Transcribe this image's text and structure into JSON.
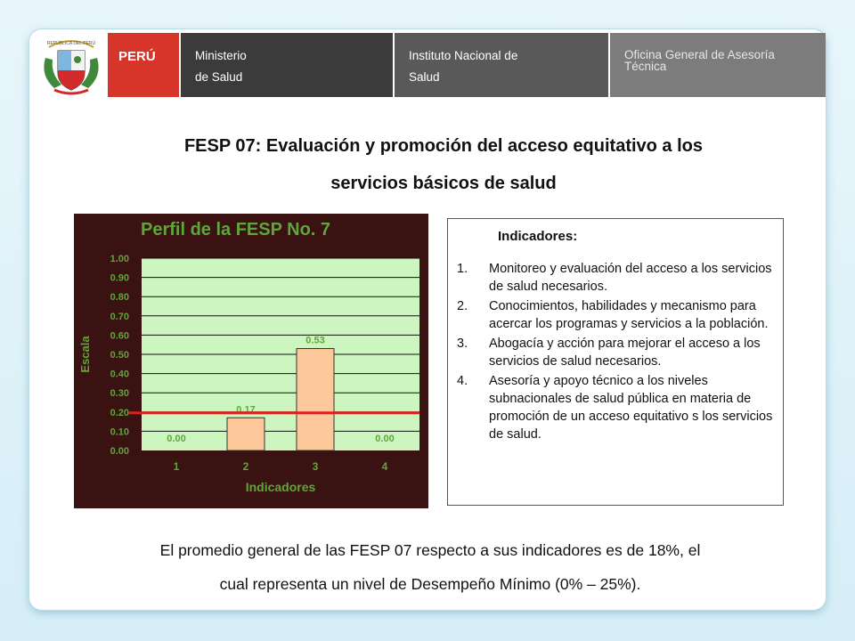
{
  "header": {
    "country": "PERÚ",
    "ministry_line1": "Ministerio",
    "ministry_line2": "de Salud",
    "institute_line1": "Instituto Nacional de",
    "institute_line2": "Salud",
    "office_line1": "Oficina General de Asesoría",
    "office_line2": "Técnica",
    "crest_text": "REPÚBLICA DEL PERÚ"
  },
  "title_line1": "FESP 07: Evaluación y promoción del acceso equitativo a los",
  "title_line2": "servicios básicos de salud",
  "chart_data": {
    "type": "bar",
    "title": "Perfil de la FESP No. 7",
    "xlabel": "Indicadores",
    "ylabel": "Escala",
    "categories": [
      "1",
      "2",
      "3",
      "4"
    ],
    "values": [
      0.0,
      0.17,
      0.53,
      0.0
    ],
    "value_labels": [
      "0.00",
      "0.17",
      "0.53",
      "0.00"
    ],
    "ylim": [
      0,
      1
    ],
    "yticks": [
      "0.00",
      "0.10",
      "0.20",
      "0.30",
      "0.40",
      "0.50",
      "0.60",
      "0.70",
      "0.80",
      "0.90",
      "1.00"
    ],
    "reference_line": 0.2,
    "grid": true,
    "colors": {
      "background": "#3a1212",
      "plot": "#ccf5c0",
      "bar": "#fdc89a",
      "text": "#5fa63a",
      "reference": "#e0201c"
    }
  },
  "indicators": {
    "title": "Indicadores:",
    "items": [
      {
        "num": "1.",
        "text": "Monitoreo y evaluación del acceso a los servicios de salud necesarios."
      },
      {
        "num": "2.",
        "text": "Conocimientos, habilidades y mecanismo para acercar los programas y servicios a la población."
      },
      {
        "num": "3.",
        "text": "Abogacía y acción para mejorar el acceso a los servicios de salud necesarios."
      },
      {
        "num": "4.",
        "text": "Asesoría y apoyo técnico a los niveles subnacionales de salud pública en materia de promoción de un acceso equitativo s los servicios de salud."
      }
    ]
  },
  "footer_line1": "El promedio general de las FESP 07 respecto a sus indicadores es de 18%, el",
  "footer_line2": "cual representa un nivel de Desempeño Mínimo (0% – 25%)."
}
